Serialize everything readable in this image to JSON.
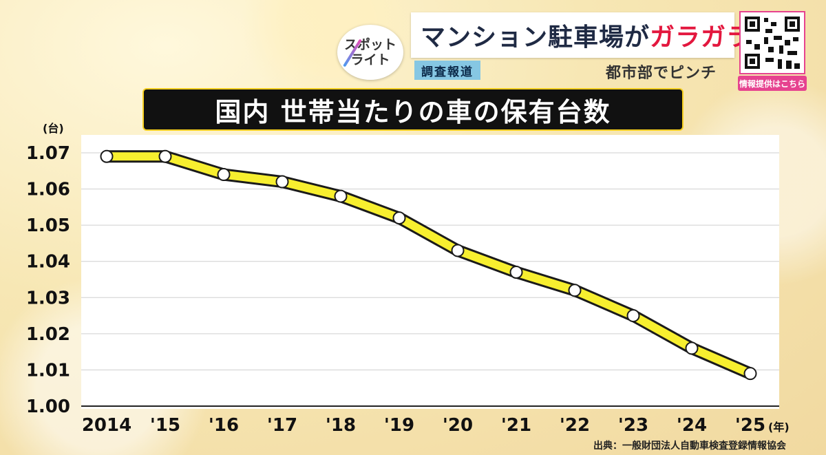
{
  "program": {
    "logo_line1": "スポット",
    "logo_line2": "ライト",
    "headline_main": "マンション駐車場が",
    "headline_accent": "ガラガラ!",
    "tag": "調査報道",
    "subhead": "都市部でピンチ",
    "qr_label": "情報提供はこちら"
  },
  "chart_data": {
    "type": "line",
    "title": "国内 世帯当たりの車の保有台数",
    "ylabel": "(台)",
    "xlabel": "(年)",
    "categories": [
      "2014",
      "'15",
      "'16",
      "'17",
      "'18",
      "'19",
      "'20",
      "'21",
      "'22",
      "'23",
      "'24",
      "'25"
    ],
    "series": [
      {
        "name": "世帯当たりの車の保有台数",
        "values": [
          1.069,
          1.069,
          1.064,
          1.062,
          1.058,
          1.052,
          1.043,
          1.037,
          1.032,
          1.025,
          1.016,
          1.009
        ]
      }
    ],
    "yticks": [
      "1.00",
      "1.01",
      "1.02",
      "1.03",
      "1.04",
      "1.05",
      "1.06",
      "1.07"
    ],
    "ylim": [
      1.0,
      1.07
    ],
    "grid": true,
    "line_color": "#f7ef2f",
    "line_outline_color": "#1a1a1a",
    "source": "出典：一般財団法人自動車検査登録情報協会"
  }
}
